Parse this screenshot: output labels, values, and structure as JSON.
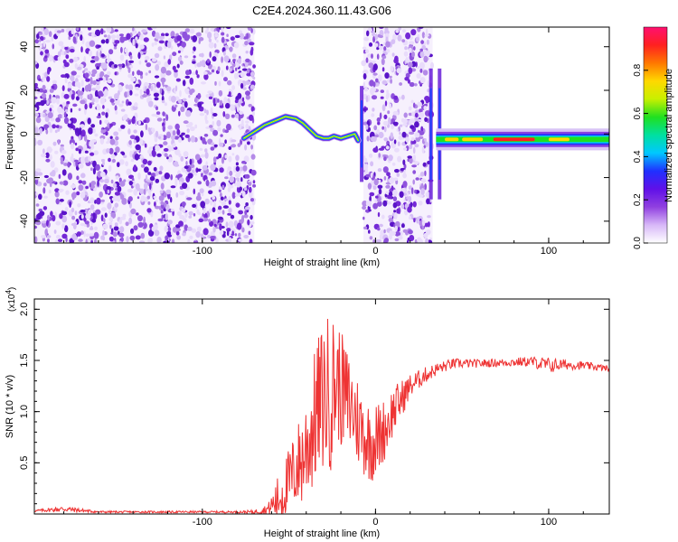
{
  "figure": {
    "title": "C2E4.2024.360.11.43.G06"
  },
  "chart_data": [
    {
      "type": "heatmap",
      "xlabel": "Height of straight line (km)",
      "ylabel": "Frequency (Hz)",
      "xlim": [
        -197,
        135
      ],
      "ylim": [
        -50,
        49
      ],
      "xticks": [
        -100,
        0,
        100
      ],
      "yticks": [
        -40,
        -20,
        0,
        20,
        40
      ],
      "grid": false,
      "colorbar": {
        "label": "Normalized spectral amplitude",
        "range": [
          0,
          1
        ],
        "ticks": [
          "0.0",
          "0.2",
          "0.4",
          "0.6",
          "0.8"
        ],
        "colors": [
          "#ffffff",
          "#d8b8f8",
          "#9040e0",
          "#6010e8",
          "#2030ff",
          "#00c8ff",
          "#00e0a0",
          "#20e020",
          "#c8f000",
          "#ffd800",
          "#ff7800",
          "#ff2020",
          "#ff1070"
        ]
      },
      "noise_regions_km": [
        [
          -197,
          -70
        ],
        [
          -7,
          33
        ]
      ],
      "signal_track": {
        "x_km": [
          -76,
          -70,
          -64,
          -58,
          -52,
          -46,
          -42,
          -38,
          -34,
          -30,
          -27,
          -24,
          -20,
          -16,
          -12,
          -10
        ],
        "freq_hz": [
          -2,
          1,
          4,
          6,
          8,
          7,
          5,
          2,
          -1,
          -2,
          -2,
          -1,
          -2,
          -1,
          0,
          -3
        ]
      },
      "carrier": {
        "x_km": [
          35,
          135
        ],
        "freq_hz": -2.5
      },
      "vertical_streaks_km": [
        -8,
        32,
        37
      ]
    },
    {
      "type": "line",
      "xlabel": "Height of straight line (km)",
      "ylabel": "SNR (10 * v/v)",
      "scale_note": "(x10",
      "scale_exp": "4",
      "xlim": [
        -197,
        135
      ],
      "ylim": [
        0,
        2.1
      ],
      "yticks": [
        "0.5",
        "1.0",
        "1.5",
        "2.0"
      ],
      "xticks": [
        -100,
        0,
        100
      ],
      "grid": false,
      "series": [
        {
          "color": "#ee3333",
          "x_km": [
            -197,
            -180,
            -160,
            -140,
            -120,
            -100,
            -80,
            -70,
            -62,
            -56,
            -50,
            -46,
            -42,
            -38,
            -34,
            -30,
            -26,
            -22,
            -18,
            -14,
            -10,
            -6,
            -2,
            2,
            6,
            10,
            14,
            20,
            28,
            36,
            45,
            60,
            75,
            90,
            100,
            110,
            120,
            135
          ],
          "snr_x1e4": [
            0.03,
            0.05,
            0.02,
            0.02,
            0.02,
            0.02,
            0.02,
            0.02,
            0.05,
            0.15,
            0.3,
            0.45,
            0.55,
            0.75,
            1.0,
            1.15,
            1.2,
            1.3,
            1.15,
            1.05,
            0.9,
            0.75,
            0.7,
            0.75,
            0.85,
            1.0,
            1.1,
            1.25,
            1.35,
            1.42,
            1.47,
            1.47,
            1.48,
            1.49,
            1.45,
            1.46,
            1.45,
            1.42
          ],
          "spike_amp_x1e4": [
            0.01,
            0.03,
            0.01,
            0.01,
            0.01,
            0.01,
            0.01,
            0.02,
            0.05,
            0.25,
            0.35,
            0.4,
            0.5,
            0.6,
            0.7,
            0.75,
            0.8,
            0.6,
            0.55,
            0.5,
            0.45,
            0.4,
            0.4,
            0.35,
            0.3,
            0.25,
            0.2,
            0.12,
            0.08,
            0.06,
            0.05,
            0.04,
            0.04,
            0.05,
            0.08,
            0.05,
            0.04,
            0.03
          ]
        }
      ]
    }
  ]
}
